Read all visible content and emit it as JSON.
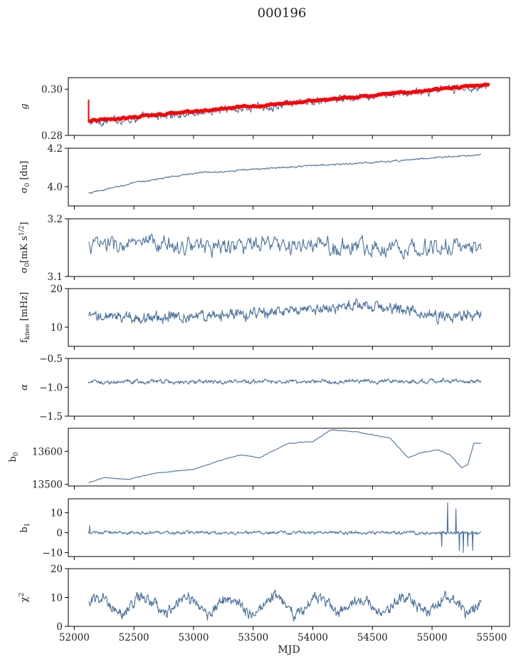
{
  "figure": {
    "title": "000196"
  },
  "colors": {
    "series": "#4c72a0",
    "fit": "#ff0000"
  },
  "chart_data": [
    {
      "type": "line",
      "ylabel": "g",
      "ylim": [
        0.28,
        0.305
      ],
      "ytick_values": [
        0.28,
        0.3
      ],
      "ytick_labels": [
        "0.28",
        "0.30"
      ],
      "xlim": [
        51950,
        55650
      ],
      "x_range": [
        52120,
        55480
      ],
      "series": [
        {
          "kind": "data",
          "start": 0.2855,
          "end": 0.3015,
          "noise": 0.0012,
          "points": 700
        },
        {
          "kind": "fit",
          "start": 0.2862,
          "end": 0.302,
          "noise": 0.0003,
          "thickness": 5,
          "points": 300
        }
      ]
    },
    {
      "type": "line",
      "ylabel": "σ0 [du]",
      "ylim": [
        3.9,
        4.2
      ],
      "ytick_values": [
        4.0,
        4.2
      ],
      "ytick_labels": [
        "4.0",
        "4.2"
      ],
      "xlim": [
        51950,
        55650
      ],
      "x_range": [
        52120,
        55410
      ],
      "series": [
        {
          "kind": "data",
          "shape": [
            [
              52120,
              3.965
            ],
            [
              52500,
              4.02
            ],
            [
              53000,
              4.07
            ],
            [
              53500,
              4.09
            ],
            [
              54000,
              4.11
            ],
            [
              54500,
              4.125
            ],
            [
              55000,
              4.15
            ],
            [
              55410,
              4.165
            ]
          ],
          "noise": 0.003,
          "points": 700
        }
      ]
    },
    {
      "type": "line",
      "ylabel": "σ0[mK s1/2]",
      "ylim": [
        3.1,
        3.2
      ],
      "ytick_values": [
        3.1,
        3.2
      ],
      "ytick_labels": [
        "3.1",
        "3.2"
      ],
      "xlim": [
        51950,
        55650
      ],
      "x_range": [
        52120,
        55410
      ],
      "series": [
        {
          "kind": "data",
          "start": 3.155,
          "end": 3.15,
          "noise": 0.011,
          "points": 500
        }
      ]
    },
    {
      "type": "line",
      "ylabel": "fknee [mHz]",
      "ylim": [
        5,
        20
      ],
      "ytick_values": [
        10,
        20
      ],
      "ytick_labels": [
        "10",
        "20"
      ],
      "xlim": [
        51950,
        55650
      ],
      "x_range": [
        52120,
        55410
      ],
      "series": [
        {
          "kind": "data",
          "shape": [
            [
              52120,
              12.5
            ],
            [
              52600,
              12.5
            ],
            [
              53200,
              13.0
            ],
            [
              53800,
              14.0
            ],
            [
              54300,
              15.5
            ],
            [
              54700,
              15.0
            ],
            [
              55000,
              13.0
            ],
            [
              55200,
              12.5
            ],
            [
              55410,
              13.5
            ]
          ],
          "noise": 1.0,
          "points": 800
        }
      ]
    },
    {
      "type": "line",
      "ylabel": "α",
      "ylim": [
        -1.5,
        -0.5
      ],
      "ytick_values": [
        -1.5,
        -1.0,
        -0.5
      ],
      "ytick_labels": [
        "−1.5",
        "−1.0",
        "−0.5"
      ],
      "xlim": [
        51950,
        55650
      ],
      "x_range": [
        52120,
        55410
      ],
      "series": [
        {
          "kind": "data",
          "start": -0.91,
          "end": -0.89,
          "noise": 0.025,
          "points": 800
        }
      ]
    },
    {
      "type": "line",
      "ylabel": "b0",
      "ylim": [
        13495,
        13670
      ],
      "ytick_values": [
        13500,
        13600
      ],
      "ytick_labels": [
        "13500",
        "13600"
      ],
      "xlim": [
        51950,
        55650
      ],
      "x_range": [
        52120,
        55410
      ],
      "series": [
        {
          "kind": "data",
          "shape": [
            [
              52120,
              13505
            ],
            [
              52250,
              13520
            ],
            [
              52450,
              13515
            ],
            [
              52700,
              13535
            ],
            [
              53000,
              13545
            ],
            [
              53200,
              13570
            ],
            [
              53400,
              13590
            ],
            [
              53550,
              13580
            ],
            [
              53800,
              13625
            ],
            [
              54000,
              13630
            ],
            [
              54150,
              13665
            ],
            [
              54350,
              13660
            ],
            [
              54650,
              13640
            ],
            [
              54800,
              13580
            ],
            [
              54900,
              13595
            ],
            [
              55050,
              13605
            ],
            [
              55150,
              13590
            ],
            [
              55250,
              13550
            ],
            [
              55300,
              13560
            ],
            [
              55350,
              13625
            ],
            [
              55410,
              13625
            ]
          ],
          "noise": 0.8,
          "points": 600
        }
      ]
    },
    {
      "type": "line",
      "ylabel": "b1",
      "ylim": [
        -12,
        17
      ],
      "ytick_values": [
        -10,
        0,
        10
      ],
      "ytick_labels": [
        "−10",
        "0",
        "10"
      ],
      "xlim": [
        51950,
        55650
      ],
      "x_range": [
        52120,
        55410
      ],
      "series": [
        {
          "kind": "data",
          "start": 0.0,
          "end": 0.0,
          "noise": 0.6,
          "points": 800,
          "spikes": [
            [
              52130,
              3.5
            ],
            [
              55080,
              -7
            ],
            [
              55130,
              15
            ],
            [
              55200,
              12
            ],
            [
              55230,
              -9
            ],
            [
              55260,
              -10
            ],
            [
              55300,
              -7
            ],
            [
              55340,
              -9
            ]
          ]
        }
      ]
    },
    {
      "type": "line",
      "ylabel": "χ2",
      "xlabel": "MJD",
      "ylim": [
        0,
        20
      ],
      "ytick_values": [
        0,
        10,
        20
      ],
      "ytick_labels": [
        "0",
        "10",
        "20"
      ],
      "xlim": [
        51950,
        55650
      ],
      "xtick_values": [
        52000,
        52500,
        53000,
        53500,
        54000,
        54500,
        55000,
        55500
      ],
      "xtick_labels": [
        "52000",
        "52500",
        "53000",
        "53500",
        "54000",
        "54500",
        "55000",
        "55500"
      ],
      "x_range": [
        52120,
        55410
      ],
      "series": [
        {
          "kind": "data",
          "start": 7.5,
          "end": 7.5,
          "noise": 1.4,
          "seasonal_amplitude": 2.6,
          "seasonal_period": 365,
          "points": 800
        }
      ]
    }
  ]
}
